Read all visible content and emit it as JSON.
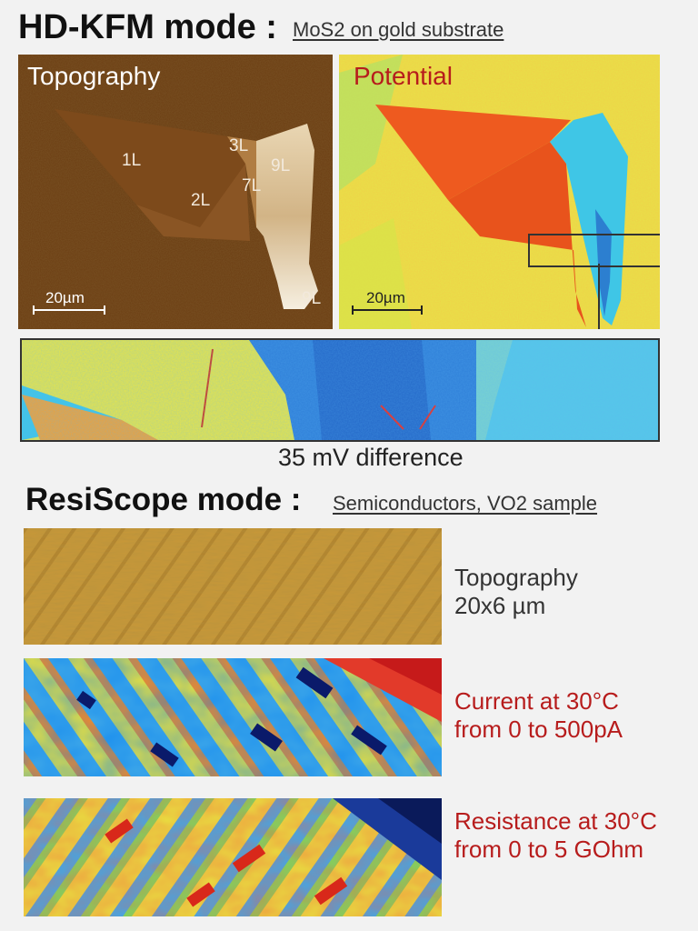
{
  "kfm": {
    "title": "HD-KFM mode :",
    "subtitle": "MoS2 on gold substrate",
    "topography": {
      "label": "Topography",
      "layers": [
        "1L",
        "2L",
        "3L",
        "7L",
        "9L",
        "9L"
      ],
      "scale": "20µm"
    },
    "potential": {
      "label": "Potential",
      "scale": "20µm"
    },
    "zoom_caption": "35 mV difference"
  },
  "resiscope": {
    "title": "ResiScope mode :",
    "subtitle": "Semiconductors, VO2 sample",
    "topography": {
      "line1": "Topography",
      "line2": "20x6 µm"
    },
    "current": {
      "line1": "Current at 30°C",
      "line2": "from 0 to 500pA"
    },
    "resistance": {
      "line1": "Resistance at 30°C",
      "line2": "from 0 to 5 GOhm"
    }
  },
  "colors": {
    "label_red": "#b71c1c",
    "topo_brown": "#6b3d12",
    "potential_yellow": "#e8e24a"
  }
}
